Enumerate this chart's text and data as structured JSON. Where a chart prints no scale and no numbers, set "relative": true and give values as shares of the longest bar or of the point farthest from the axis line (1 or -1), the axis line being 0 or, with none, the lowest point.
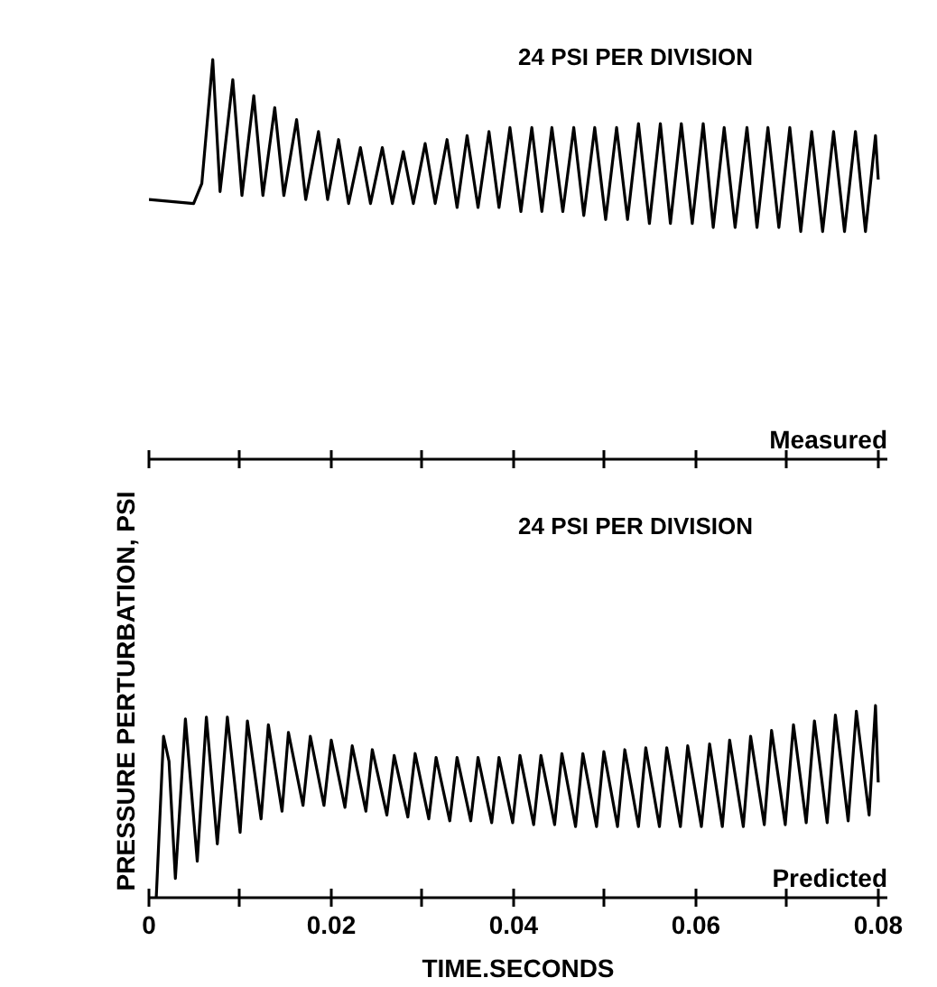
{
  "chart_data": [
    {
      "type": "line",
      "relative": true,
      "annotations": [
        "24 PSI PER DIVISION"
      ],
      "xlim": [
        0,
        0.081
      ],
      "xticks": [
        0,
        0.01,
        0.02,
        0.03,
        0.04,
        0.05,
        0.06,
        0.07,
        0.08
      ],
      "tick_labels": false,
      "series": [
        {
          "name": "Measured",
          "color": "#000000",
          "x": [
            0,
            0.0049,
            0.0058,
            0.007,
            0.0078,
            0.0092,
            0.0102,
            0.0115,
            0.0125,
            0.0138,
            0.0148,
            0.0162,
            0.0172,
            0.0186,
            0.0196,
            0.0208,
            0.0219,
            0.0232,
            0.0243,
            0.0256,
            0.0267,
            0.0279,
            0.029,
            0.0303,
            0.0314,
            0.0327,
            0.0338,
            0.0349,
            0.0361,
            0.0373,
            0.0384,
            0.0396,
            0.0408,
            0.042,
            0.0431,
            0.0442,
            0.0454,
            0.0466,
            0.0477,
            0.0489,
            0.0501,
            0.0513,
            0.0525,
            0.0537,
            0.0549,
            0.0561,
            0.0572,
            0.0584,
            0.0596,
            0.0608,
            0.0619,
            0.0631,
            0.0643,
            0.0656,
            0.0667,
            0.0679,
            0.0691,
            0.0703,
            0.0715,
            0.0727,
            0.0739,
            0.0751,
            0.0763,
            0.0775,
            0.0786,
            0.0797,
            0.08
          ],
          "values": [
            0.65,
            0.64,
            0.69,
            1.0,
            0.67,
            0.95,
            0.66,
            0.91,
            0.66,
            0.88,
            0.66,
            0.85,
            0.65,
            0.82,
            0.65,
            0.8,
            0.64,
            0.78,
            0.64,
            0.78,
            0.64,
            0.77,
            0.64,
            0.79,
            0.64,
            0.8,
            0.63,
            0.81,
            0.63,
            0.82,
            0.63,
            0.83,
            0.62,
            0.83,
            0.62,
            0.83,
            0.62,
            0.83,
            0.61,
            0.83,
            0.6,
            0.83,
            0.6,
            0.84,
            0.59,
            0.84,
            0.59,
            0.84,
            0.59,
            0.84,
            0.58,
            0.83,
            0.58,
            0.83,
            0.58,
            0.83,
            0.58,
            0.83,
            0.57,
            0.82,
            0.57,
            0.82,
            0.57,
            0.82,
            0.57,
            0.81,
            0.7
          ]
        }
      ]
    },
    {
      "type": "line",
      "relative": true,
      "annotations": [
        "24 PSI PER DIVISION"
      ],
      "xlabel": "TIME.SECONDS",
      "ylabel": "PRESSURE PERTURBATION, PSI",
      "xlim": [
        0,
        0.081
      ],
      "xticks": [
        {
          "value": 0,
          "label": "0"
        },
        {
          "value": 0.01,
          "label": null
        },
        0.02,
        {
          "value": 0.03,
          "label": null
        },
        0.04,
        {
          "value": 0.05,
          "label": null
        },
        0.06,
        {
          "value": 0.07,
          "label": null
        },
        0.08
      ],
      "tick_labels": "x",
      "series": [
        {
          "name": "Predicted",
          "color": "#000000",
          "x": [
            0.0008,
            0.0016,
            0.0022,
            0.0029,
            0.004,
            0.0053,
            0.0063,
            0.0075,
            0.0086,
            0.01,
            0.0108,
            0.0123,
            0.0131,
            0.0146,
            0.0153,
            0.0169,
            0.0177,
            0.0192,
            0.02,
            0.0215,
            0.0223,
            0.0238,
            0.0245,
            0.0261,
            0.0269,
            0.0284,
            0.0292,
            0.0307,
            0.0315,
            0.033,
            0.0338,
            0.0353,
            0.0361,
            0.0376,
            0.0384,
            0.0399,
            0.0407,
            0.0422,
            0.043,
            0.0445,
            0.0453,
            0.0468,
            0.0476,
            0.0491,
            0.0499,
            0.0514,
            0.0522,
            0.0537,
            0.0545,
            0.056,
            0.0568,
            0.0583,
            0.0591,
            0.0606,
            0.0615,
            0.0629,
            0.0637,
            0.0652,
            0.066,
            0.0675,
            0.0683,
            0.0698,
            0.0707,
            0.0721,
            0.073,
            0.0744,
            0.0753,
            0.0767,
            0.0776,
            0.079,
            0.0797,
            0.08
          ],
          "values": [
            0,
            0.84,
            0.71,
            0.1,
            0.93,
            0.19,
            0.94,
            0.28,
            0.94,
            0.34,
            0.92,
            0.41,
            0.9,
            0.45,
            0.86,
            0.48,
            0.84,
            0.48,
            0.82,
            0.47,
            0.79,
            0.45,
            0.77,
            0.43,
            0.74,
            0.42,
            0.75,
            0.41,
            0.73,
            0.4,
            0.73,
            0.4,
            0.73,
            0.39,
            0.73,
            0.39,
            0.74,
            0.38,
            0.74,
            0.38,
            0.75,
            0.37,
            0.75,
            0.37,
            0.76,
            0.37,
            0.77,
            0.37,
            0.78,
            0.37,
            0.78,
            0.37,
            0.79,
            0.37,
            0.8,
            0.37,
            0.82,
            0.37,
            0.84,
            0.38,
            0.87,
            0.38,
            0.9,
            0.39,
            0.92,
            0.39,
            0.95,
            0.4,
            0.97,
            0.43,
            1.0,
            0.6
          ]
        }
      ]
    }
  ]
}
